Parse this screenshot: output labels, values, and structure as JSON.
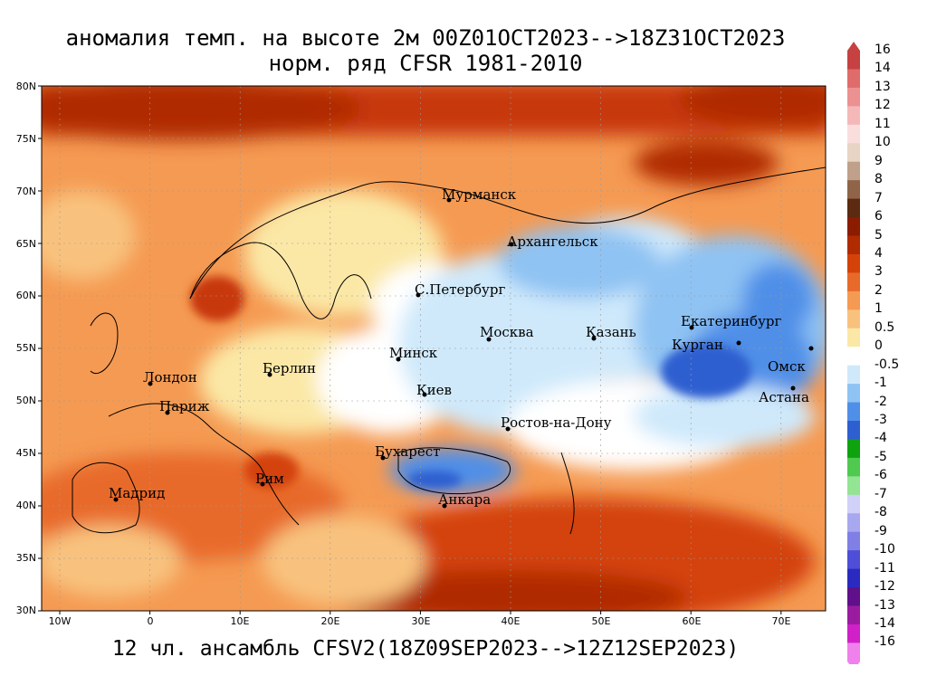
{
  "title_line1": "аномалия темп. на высоте 2м 00Z01OCT2023-->18Z31OCT2023",
  "title_line2": "норм. ряд CFSR 1981-2010",
  "footer": "12 чл. ансамбль CFSV2(18Z09SEP2023-->12Z12SEP2023)",
  "lat_labels": [
    "80N",
    "75N",
    "70N",
    "65N",
    "60N",
    "55N",
    "50N",
    "45N",
    "40N",
    "35N",
    "30N"
  ],
  "lon_labels": [
    "10W",
    "0",
    "10E",
    "20E",
    "30E",
    "40E",
    "50E",
    "60E",
    "70E"
  ],
  "colorbar": {
    "labels": [
      "16",
      "14",
      "13",
      "12",
      "11",
      "10",
      "9",
      "8",
      "7",
      "6",
      "5",
      "4",
      "3",
      "2",
      "1",
      "0.5",
      "0",
      "-0.5",
      "-1",
      "-2",
      "-3",
      "-4",
      "-5",
      "-6",
      "-7",
      "-8",
      "-9",
      "-10",
      "-11",
      "-12",
      "-13",
      "-14",
      "-16"
    ],
    "colors": [
      "#c64141",
      "#e06b6b",
      "#ec9191",
      "#f5b8b8",
      "#fadede",
      "#e8d4c4",
      "#bfa08a",
      "#8f6448",
      "#5c2a10",
      "#8b1c00",
      "#b02b00",
      "#d4420a",
      "#e86a2a",
      "#f59a52",
      "#f8c27e",
      "#fbe8a6",
      "#ffffff",
      "#cfe9fb",
      "#8fc3f3",
      "#4f8fe8",
      "#2e5fd0",
      "#0ea30e",
      "#4fc94f",
      "#93e493",
      "#d0d0f8",
      "#a8a8f0",
      "#7f7fe6",
      "#4e4ed8",
      "#2a2ac0",
      "#60108a",
      "#9b1ba0",
      "#d020c8",
      "#f080ec"
    ]
  },
  "cities": [
    {
      "name": "Мурманск"
    },
    {
      "name": "Архангельск"
    },
    {
      "name": "С.Петербург"
    },
    {
      "name": "Москва"
    },
    {
      "name": "Казань"
    },
    {
      "name": "Екатеринбург"
    },
    {
      "name": "Курган"
    },
    {
      "name": "Омск"
    },
    {
      "name": "Астана"
    },
    {
      "name": "Минск"
    },
    {
      "name": "Киев"
    },
    {
      "name": "Берлин"
    },
    {
      "name": "Лондон"
    },
    {
      "name": "Париж"
    },
    {
      "name": "Ростов-на-Дону"
    },
    {
      "name": "Бухарест"
    },
    {
      "name": "Рим"
    },
    {
      "name": "Мадрид"
    },
    {
      "name": "Анкара"
    }
  ]
}
